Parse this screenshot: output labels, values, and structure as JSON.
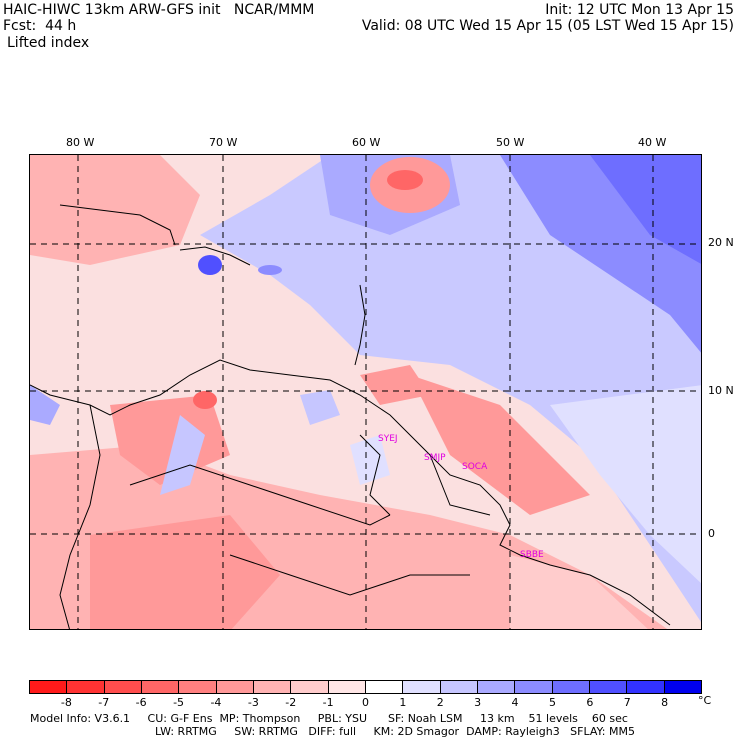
{
  "header": {
    "model_line": "HAIC-HIWC 13km ARW-GFS init   NCAR/MMM",
    "forecast_line": "Fcst:  44 h",
    "field_name": "Lifted index",
    "init_line": "Init: 12 UTC Mon 13 Apr 15",
    "valid_line": "Valid: 08 UTC Wed 15 Apr 15 (05 LST Wed 15 Apr 15)"
  },
  "map": {
    "longitude_labels": [
      "80 W",
      "70 W",
      "60 W",
      "50 W",
      "40 W"
    ],
    "latitude_labels": [
      "20 N",
      "10 N",
      "0"
    ],
    "station_labels": [
      "SYEJ",
      "SMJP",
      "SOCA",
      "SBBE"
    ]
  },
  "legend": {
    "tick_labels": [
      "-8",
      "-7",
      "-6",
      "-5",
      "-4",
      "-3",
      "-2",
      "-1",
      "0",
      "1",
      "2",
      "3",
      "4",
      "5",
      "6",
      "7",
      "8"
    ],
    "unit": "°C",
    "colors": [
      "#ff1a1a",
      "#ff3333",
      "#ff4d4d",
      "#ff6666",
      "#ff8080",
      "#ff9999",
      "#ffb3b3",
      "#ffcccc",
      "#ffe6e6",
      "#ffffff",
      "#e0e0ff",
      "#c6c6ff",
      "#aaaaff",
      "#8c8cff",
      "#6e6eff",
      "#5050ff",
      "#3232ff",
      "#0000ee"
    ]
  },
  "footer": {
    "line1": "Model Info: V3.6.1     CU: G-F Ens  MP: Thompson     PBL: YSU      SF: Noah LSM     13 km    51 levels    60 sec",
    "line2": "LW: RRTMG     SW: RRTMG   DIFF: full     KM: 2D Smagor  DAMP: Rayleigh3   SFLAY: MM5"
  }
}
